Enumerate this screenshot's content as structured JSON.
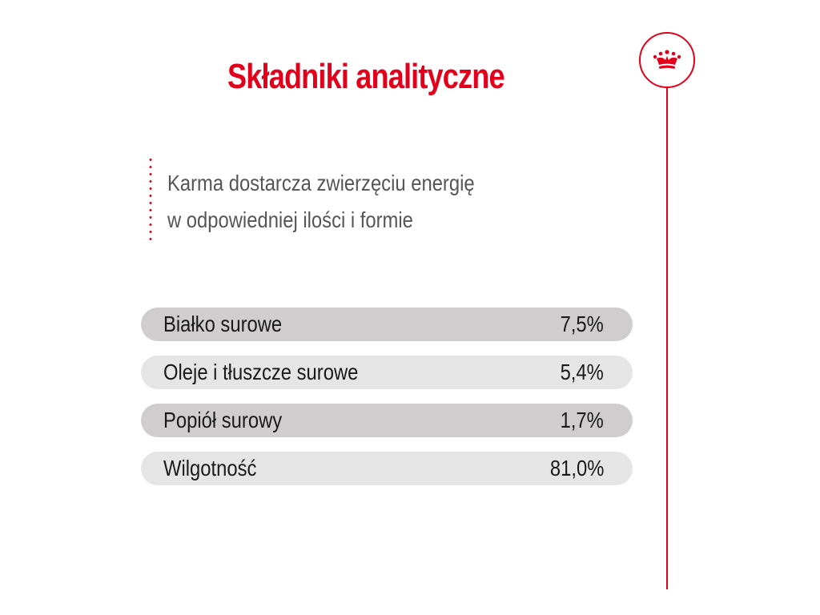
{
  "title": "Składniki analityczne",
  "subtitle": {
    "line1": "Karma dostarcza zwierzęciu energię",
    "line2": "w odpowiedniej ilości i formie"
  },
  "table": {
    "rows": [
      {
        "label": "Białko surowe",
        "value": "7,5%"
      },
      {
        "label": "Oleje i tłuszcze surowe",
        "value": "5,4%"
      },
      {
        "label": "Popiół surowy",
        "value": "1,7%"
      },
      {
        "label": "Wilgotność",
        "value": "81,0%"
      }
    ]
  },
  "logo": {
    "icon": "crown-icon"
  },
  "colors": {
    "accent": "#e2001a",
    "row_dark": "#cfcdcd",
    "row_light": "#e5e5e5",
    "text_gray": "#555555"
  }
}
